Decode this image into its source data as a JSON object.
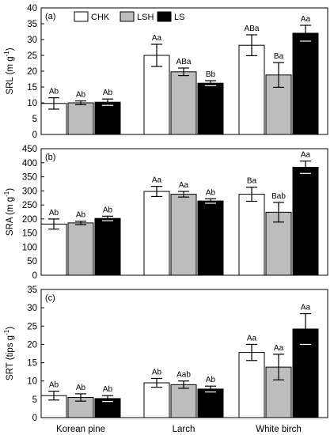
{
  "chart_data": [
    {
      "type": "bar",
      "panel_label": "(a)",
      "ylabel_main": "SRL",
      "ylabel_unit": "(m g",
      "ylabel_sup": "-1",
      "ylabel_close": ")",
      "ylim": [
        0,
        40
      ],
      "yticks": [
        0,
        5,
        10,
        15,
        20,
        25,
        30,
        35,
        40
      ],
      "categories": [
        "Korean pine",
        "Larch",
        "White birch"
      ],
      "series": [
        {
          "name": "CHK",
          "values": [
            9.8,
            25.0,
            28.2
          ],
          "errors": [
            1.8,
            3.5,
            3.3
          ],
          "labels": [
            "Ab",
            "Aa",
            "ABa"
          ]
        },
        {
          "name": "LSH",
          "values": [
            10.0,
            19.8,
            18.8
          ],
          "errors": [
            0.6,
            1.2,
            3.9
          ],
          "labels": [
            "Ab",
            "ABa",
            "Ba"
          ]
        },
        {
          "name": "LS",
          "values": [
            10.2,
            16.2,
            32.0
          ],
          "errors": [
            1.0,
            0.8,
            2.5
          ],
          "labels": [
            "Ab",
            "Bb",
            "Aa"
          ]
        }
      ],
      "legend": [
        "CHK",
        "LSH",
        "LS"
      ]
    },
    {
      "type": "bar",
      "panel_label": "(b)",
      "ylabel_main": "SRA",
      "ylabel_unit": "(m g",
      "ylabel_sup": "-1",
      "ylabel_close": ")",
      "ylim": [
        0,
        450
      ],
      "yticks": [
        0,
        50,
        100,
        150,
        200,
        250,
        300,
        350,
        400,
        450
      ],
      "categories": [
        "Korean pine",
        "Larch",
        "White birch"
      ],
      "series": [
        {
          "name": "CHK",
          "values": [
            182,
            298,
            288
          ],
          "errors": [
            18,
            18,
            25
          ],
          "labels": [
            "Ab",
            "Aa",
            "Ba"
          ]
        },
        {
          "name": "LSH",
          "values": [
            186,
            288,
            224
          ],
          "errors": [
            6,
            10,
            35
          ],
          "labels": [
            "Ab",
            "Aa",
            "Bab"
          ]
        },
        {
          "name": "LS",
          "values": [
            202,
            264,
            384
          ],
          "errors": [
            8,
            8,
            22
          ],
          "labels": [
            "Ab",
            "Ab",
            "Aa"
          ]
        }
      ]
    },
    {
      "type": "bar",
      "panel_label": "(c)",
      "ylabel_main": "SRT",
      "ylabel_unit": "(tips g",
      "ylabel_sup": "-1",
      "ylabel_close": ")",
      "ylim": [
        0,
        35
      ],
      "yticks": [
        0,
        5,
        10,
        15,
        20,
        25,
        30,
        35
      ],
      "categories": [
        "Korean pine",
        "Larch",
        "White birch"
      ],
      "series": [
        {
          "name": "CHK",
          "values": [
            6.0,
            9.5,
            17.8
          ],
          "errors": [
            1.2,
            1.2,
            2.2
          ],
          "labels": [
            "Ab",
            "Ab",
            "Aa"
          ]
        },
        {
          "name": "LSH",
          "values": [
            5.5,
            9.0,
            13.8
          ],
          "errors": [
            1.0,
            1.0,
            3.5
          ],
          "labels": [
            "Ab",
            "Aab",
            "Aa"
          ]
        },
        {
          "name": "LS",
          "values": [
            5.2,
            7.8,
            24.2
          ],
          "errors": [
            0.8,
            0.8,
            4.2
          ],
          "labels": [
            "Ab",
            "Ab",
            "Aa"
          ]
        }
      ]
    }
  ],
  "colors": {
    "CHK": "#ffffff",
    "LSH": "#bdbdbd",
    "LS": "#000000"
  }
}
